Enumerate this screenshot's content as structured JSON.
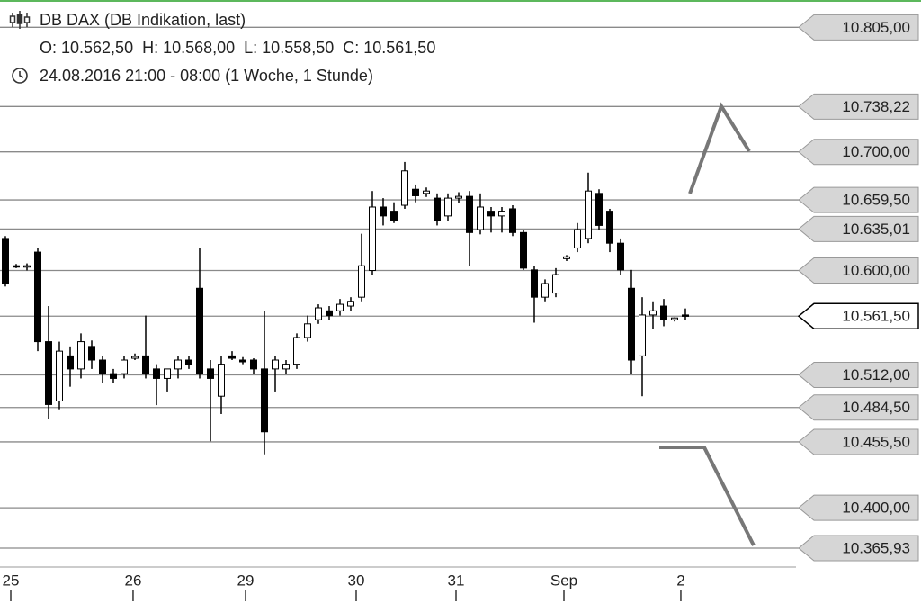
{
  "chart_data": {
    "type": "candlestick",
    "title": "DB DAX (DB Indikation, last)",
    "subtitle": "O: 10.562,50  H: 10.568,00  L: 10.558,50  C: 10.561,50",
    "period": "24.08.2016 21:00 - 08:00 (1 Woche, 1 Stunde)",
    "x": [
      0,
      1,
      2,
      3,
      4,
      5,
      6,
      7,
      8,
      9,
      10,
      11,
      12,
      13,
      14,
      15,
      16,
      17,
      18,
      19,
      20,
      21,
      22,
      23,
      24,
      25,
      26,
      27,
      28,
      29,
      30,
      31,
      32,
      33,
      34,
      35,
      36,
      37,
      38,
      39,
      40,
      41,
      42,
      43,
      44,
      45,
      46,
      47,
      48,
      49,
      50,
      51,
      52,
      53,
      54,
      55,
      56,
      57,
      58,
      59,
      60,
      61,
      62,
      63
    ],
    "open": [
      10627,
      10604,
      10603,
      10615.5,
      10540,
      10490,
      10528,
      10517,
      10536,
      10524.5,
      10513,
      10513,
      10526,
      10528,
      10517,
      10509,
      10517,
      10524.5,
      10585,
      10517,
      10494,
      10528,
      10524.5,
      10524.5,
      10517,
      10517,
      10517,
      10521,
      10543.5,
      10558.5,
      10566,
      10566,
      10570,
      10577.5,
      10600,
      10653.5,
      10650,
      10655,
      10668.5,
      10665,
      10661,
      10646,
      10661,
      10662.5,
      10634.5,
      10650,
      10646,
      10652,
      10632,
      10600.5,
      10577.5,
      10581,
      10610,
      10619,
      10627,
      10665,
      10650,
      10623,
      10585,
      10528,
      10562.5,
      10570,
      10558.5,
      10562.5
    ],
    "high": [
      10629,
      10605.5,
      10606,
      10619,
      10570,
      10540,
      10536,
      10547,
      10541,
      10528,
      10517,
      10528,
      10530,
      10562,
      10521,
      10517,
      10528,
      10528,
      10619,
      10524.5,
      10528,
      10532,
      10527,
      10526,
      10566,
      10528,
      10524.5,
      10547,
      10562,
      10571.5,
      10570,
      10576,
      10577.5,
      10631,
      10667,
      10661,
      10657.5,
      10691.5,
      10672.5,
      10670,
      10665,
      10665,
      10666,
      10667,
      10665,
      10653.5,
      10653.5,
      10655,
      10634.5,
      10604,
      10592.5,
      10602,
      10613,
      10640,
      10682.5,
      10668.5,
      10652,
      10627,
      10600.5,
      10577.5,
      10574,
      10576,
      10560.5,
      10568
    ],
    "low": [
      10586.5,
      10602,
      10600,
      10532,
      10475,
      10483,
      10502,
      10509,
      10517,
      10505,
      10505.5,
      10509,
      10524.5,
      10509,
      10486.5,
      10498,
      10509,
      10517,
      10509,
      10456,
      10479,
      10524.5,
      10521,
      10513,
      10445,
      10498,
      10513,
      10517,
      10540,
      10555,
      10558.5,
      10562,
      10566,
      10574,
      10596.5,
      10638,
      10640,
      10652,
      10657.5,
      10662,
      10638,
      10642,
      10657,
      10604,
      10630.5,
      10632,
      10632,
      10629,
      10600.5,
      10556,
      10574,
      10577.5,
      10608,
      10615.5,
      10623,
      10634.5,
      10615.5,
      10596.5,
      10513,
      10494,
      10551,
      10553,
      10557,
      10558.5
    ],
    "close": [
      10589,
      10603,
      10604,
      10540,
      10487,
      10532,
      10517,
      10540,
      10524.5,
      10513,
      10509,
      10524.5,
      10527.5,
      10513,
      10509,
      10517,
      10524.5,
      10521,
      10513,
      10509,
      10521,
      10526,
      10523,
      10517,
      10464,
      10524.5,
      10521,
      10543.5,
      10555,
      10568.5,
      10562,
      10571.5,
      10574,
      10604,
      10653.5,
      10646,
      10642.5,
      10684,
      10663,
      10667,
      10642,
      10661,
      10662.5,
      10632,
      10653.5,
      10646,
      10650,
      10632,
      10602,
      10577.5,
      10589,
      10596.5,
      10611.5,
      10634.5,
      10667,
      10638,
      10623,
      10600.5,
      10524.5,
      10562.5,
      10566,
      10558.5,
      10560,
      10561.5
    ],
    "up_color": "#ffffff",
    "down_color": "#000000",
    "xlim": [
      -0.5,
      73.25
    ],
    "xticks": [
      {
        "value": 0.5,
        "label": "25"
      },
      {
        "value": 11.83,
        "label": "26"
      },
      {
        "value": 22.25,
        "label": "29"
      },
      {
        "value": 32.5,
        "label": "30"
      },
      {
        "value": 41.75,
        "label": "31"
      },
      {
        "value": 51.75,
        "label": "Sep"
      },
      {
        "value": 62.58,
        "label": "2"
      }
    ],
    "ylim": [
      10350,
      10828
    ],
    "yticks": [
      {
        "value": 10805,
        "label": "10.805,00"
      },
      {
        "value": 10738.22,
        "label": "10.738,22"
      },
      {
        "value": 10700,
        "label": "10.700,00"
      },
      {
        "value": 10659.5,
        "label": "10.659,50"
      },
      {
        "value": 10635.01,
        "label": "10.635,01"
      },
      {
        "value": 10600,
        "label": "10.600,00"
      },
      {
        "value": 10561.5,
        "label": "10.561,50"
      },
      {
        "value": 10512,
        "label": "10.512,00"
      },
      {
        "value": 10484.5,
        "label": "10.484,50"
      },
      {
        "value": 10455.5,
        "label": "10.455,50"
      },
      {
        "value": 10400,
        "label": "10.400,00"
      },
      {
        "value": 10365.93,
        "label": "10.365,93"
      }
    ],
    "highlight_tick": 6,
    "grid": true
  }
}
